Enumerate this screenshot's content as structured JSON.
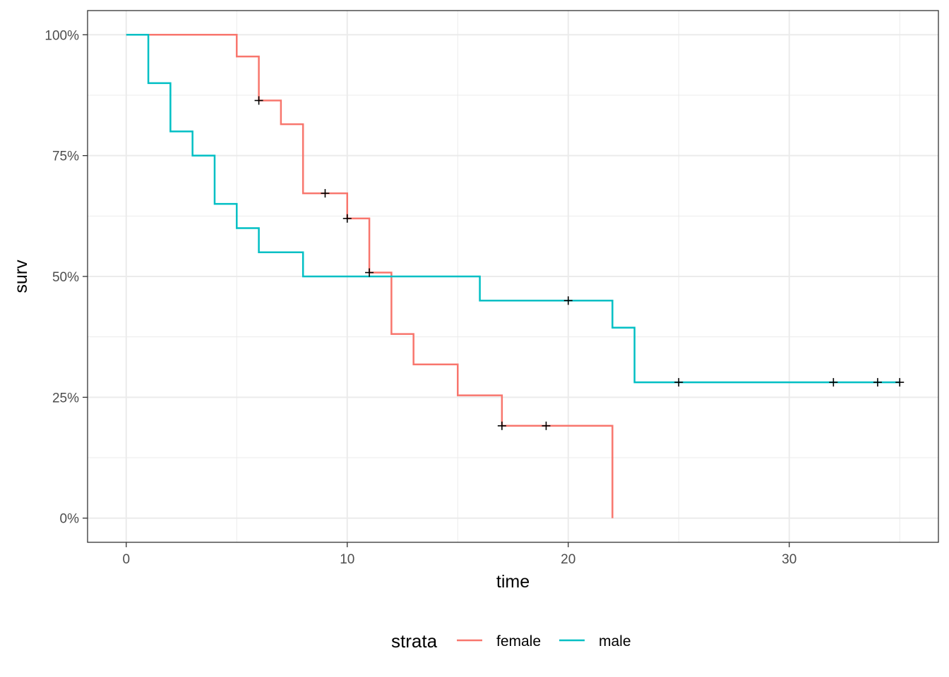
{
  "chart_data": {
    "type": "line",
    "step": true,
    "xlabel": "time",
    "ylabel": "surv",
    "xlim": [
      -1.75,
      36.75
    ],
    "ylim": [
      -0.05,
      1.05
    ],
    "x_ticks": [
      0,
      10,
      20,
      30
    ],
    "x_tick_labels": [
      "0",
      "10",
      "20",
      "30"
    ],
    "y_ticks": [
      0,
      0.25,
      0.5,
      0.75,
      1.0
    ],
    "y_tick_labels": [
      "0%",
      "25%",
      "50%",
      "75%",
      "100%"
    ],
    "grid": true,
    "legend": {
      "title": "strata",
      "position": "bottom",
      "entries": [
        "female",
        "male"
      ]
    },
    "series": [
      {
        "name": "female",
        "color": "#F8766D",
        "points": [
          [
            0,
            1.0
          ],
          [
            5,
            0.955
          ],
          [
            6,
            0.864
          ],
          [
            7,
            0.815
          ],
          [
            8,
            0.672
          ],
          [
            10,
            0.62
          ],
          [
            11,
            0.508
          ],
          [
            12,
            0.381
          ],
          [
            13,
            0.318
          ],
          [
            15,
            0.254
          ],
          [
            17,
            0.191
          ],
          [
            22,
            0.0
          ]
        ],
        "censored": [
          [
            6,
            0.864
          ],
          [
            9,
            0.672
          ],
          [
            10,
            0.62
          ],
          [
            11,
            0.508
          ],
          [
            17,
            0.191
          ],
          [
            19,
            0.191
          ]
        ]
      },
      {
        "name": "male",
        "color": "#00BFC4",
        "points": [
          [
            0,
            1.0
          ],
          [
            1,
            0.9
          ],
          [
            2,
            0.8
          ],
          [
            3,
            0.75
          ],
          [
            4,
            0.65
          ],
          [
            5,
            0.6
          ],
          [
            6,
            0.55
          ],
          [
            8,
            0.5
          ],
          [
            16,
            0.45
          ],
          [
            22,
            0.394
          ],
          [
            23,
            0.281
          ],
          [
            35,
            0.281
          ]
        ],
        "censored": [
          [
            20,
            0.45
          ],
          [
            25,
            0.281
          ],
          [
            32,
            0.281
          ],
          [
            34,
            0.281
          ],
          [
            35,
            0.281
          ]
        ]
      }
    ]
  }
}
